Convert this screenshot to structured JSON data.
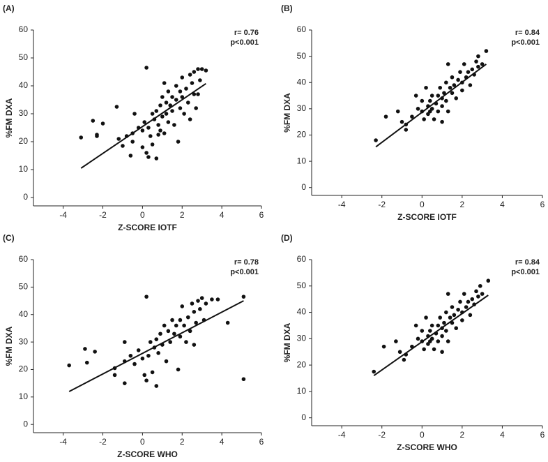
{
  "chart_data": [
    {
      "type": "scatter",
      "panel": "(A)",
      "xlabel": "Z-SCORE IOTF",
      "ylabel": "%FM DXA",
      "annotation": [
        "r= 0.76",
        "p<0.001"
      ],
      "x": [
        -3.1,
        -2.5,
        -2.3,
        -2.3,
        -2.0,
        -1.3,
        -1.2,
        -1.0,
        -0.8,
        -0.6,
        -0.5,
        -0.5,
        -0.4,
        -0.2,
        0,
        0,
        0.1,
        0.2,
        0.2,
        0.3,
        0.3,
        0.4,
        0.5,
        0.5,
        0.6,
        0.7,
        0.7,
        0.8,
        0.9,
        0.9,
        1.0,
        1.0,
        1.1,
        1.2,
        1.2,
        1.3,
        1.3,
        1.4,
        1.5,
        1.5,
        1.6,
        1.7,
        1.7,
        1.8,
        1.9,
        1.9,
        2.0,
        2.0,
        2.1,
        2.2,
        2.3,
        2.4,
        2.4,
        2.5,
        2.6,
        2.6,
        2.7,
        2.8,
        2.9,
        3.0,
        3.2,
        2.8,
        1.1,
        0.8
      ],
      "values": [
        21.5,
        27.5,
        22,
        22.5,
        26.5,
        32.5,
        21,
        18.5,
        22,
        15,
        23,
        20,
        30,
        25,
        24,
        18,
        27,
        16,
        46.5,
        14.5,
        25,
        22,
        30,
        19,
        28,
        14,
        31,
        26,
        24,
        33,
        29,
        36,
        23,
        34,
        30,
        38,
        27,
        33,
        36,
        31,
        26,
        35,
        40,
        20,
        32,
        38,
        43,
        36,
        30,
        39,
        34,
        44,
        28,
        41,
        37,
        45,
        32,
        46,
        42,
        46,
        45.5,
        37,
        41,
        22.5
      ],
      "trend": {
        "x": [
          -3.1,
          3.2
        ],
        "values": [
          10.5,
          40.8
        ]
      },
      "color": "#111111",
      "xlim": [
        -5.5,
        6
      ],
      "ylim": [
        -3,
        60
      ],
      "xticks": [
        -4,
        -2,
        0,
        2,
        4,
        6
      ],
      "yticks": [
        0,
        10,
        20,
        30,
        40,
        50,
        60
      ]
    },
    {
      "type": "scatter",
      "panel": "(B)",
      "xlabel": "Z-SCORE IOTF",
      "ylabel": "%FM DXA",
      "annotation": [
        "r= 0.84",
        "p<0.001"
      ],
      "x": [
        -2.3,
        -1.8,
        -1.2,
        -1.0,
        -0.8,
        -0.8,
        -0.5,
        -0.3,
        -0.2,
        0,
        0,
        0.1,
        0.2,
        0.3,
        0.3,
        0.4,
        0.5,
        0.5,
        0.6,
        0.7,
        0.8,
        0.8,
        0.9,
        1.0,
        1.0,
        1.1,
        1.2,
        1.2,
        1.3,
        1.4,
        1.5,
        1.5,
        1.6,
        1.7,
        1.8,
        1.9,
        2.0,
        2.0,
        2.1,
        2.2,
        2.3,
        2.4,
        2.5,
        2.6,
        2.7,
        2.8,
        2.8,
        3.0,
        3.2,
        1.3,
        0.4,
        1.0
      ],
      "values": [
        18,
        27,
        29,
        25,
        22,
        24,
        27,
        35,
        30,
        29,
        33,
        26,
        38,
        31,
        28,
        33,
        30,
        35,
        26,
        32,
        35,
        29,
        38,
        34,
        31,
        36,
        40,
        33,
        29,
        38,
        36,
        42,
        39,
        34,
        41,
        44,
        40,
        37,
        47,
        42,
        44,
        39,
        45,
        43,
        48,
        46,
        50,
        47,
        52,
        47,
        29,
        25
      ],
      "trend": {
        "x": [
          -2.3,
          3.2
        ],
        "values": [
          15.5,
          47
        ]
      },
      "color": "#111111",
      "xlim": [
        -5.5,
        6
      ],
      "ylim": [
        -3,
        60
      ],
      "xticks": [
        -4,
        -2,
        0,
        2,
        4,
        6
      ],
      "yticks": [
        0,
        10,
        20,
        30,
        40,
        50,
        60
      ]
    },
    {
      "type": "scatter",
      "panel": "(C)",
      "xlabel": "Z-SCORE WHO",
      "ylabel": "%FM DXA",
      "annotation": [
        "r= 0.78",
        "p<0.001"
      ],
      "x": [
        -3.7,
        -2.9,
        -2.8,
        -2.4,
        -1.4,
        -1.4,
        -0.9,
        -0.9,
        -0.9,
        -0.6,
        -0.4,
        -0.2,
        0,
        0.1,
        0.2,
        0.2,
        0.3,
        0.4,
        0.5,
        0.6,
        0.7,
        0.7,
        0.8,
        0.9,
        1.0,
        1.1,
        1.2,
        1.3,
        1.4,
        1.5,
        1.6,
        1.7,
        1.8,
        1.9,
        2.0,
        2.1,
        2.2,
        2.3,
        2.4,
        2.5,
        2.6,
        2.7,
        2.8,
        2.9,
        3.0,
        3.1,
        3.2,
        3.5,
        3.8,
        4.3,
        5.1,
        5.1,
        1.9,
        2.6
      ],
      "values": [
        21.5,
        27.5,
        22.5,
        26.5,
        20.5,
        18,
        23,
        30,
        15,
        25,
        22,
        27,
        24,
        18,
        46.5,
        16,
        25,
        30,
        19,
        28,
        14,
        31,
        26,
        33,
        29,
        36,
        23,
        34,
        30,
        38,
        33,
        36,
        20,
        38,
        43,
        36,
        30,
        39,
        34,
        44,
        41,
        37,
        45,
        42,
        46,
        38,
        44,
        45.5,
        45.5,
        37,
        46.5,
        16.5,
        32,
        29
      ],
      "trend": {
        "x": [
          -3.7,
          5.1
        ],
        "values": [
          12,
          45
        ]
      },
      "color": "#111111",
      "xlim": [
        -5.5,
        6
      ],
      "ylim": [
        -3,
        60
      ],
      "xticks": [
        -4,
        -2,
        0,
        2,
        4,
        6
      ],
      "yticks": [
        0,
        10,
        20,
        30,
        40,
        50,
        60
      ]
    },
    {
      "type": "scatter",
      "panel": "(D)",
      "xlabel": "Z-SCORE WHO",
      "ylabel": "%FM DXA",
      "annotation": [
        "r= 0.84",
        "p<0.001"
      ],
      "x": [
        -2.4,
        -1.9,
        -1.3,
        -1.1,
        -0.9,
        -0.8,
        -0.5,
        -0.3,
        -0.2,
        0,
        0,
        0.1,
        0.2,
        0.3,
        0.3,
        0.4,
        0.5,
        0.5,
        0.6,
        0.7,
        0.8,
        0.8,
        0.9,
        1.0,
        1.0,
        1.1,
        1.2,
        1.2,
        1.3,
        1.4,
        1.5,
        1.5,
        1.6,
        1.7,
        1.8,
        1.9,
        2.0,
        2.0,
        2.1,
        2.2,
        2.3,
        2.4,
        2.5,
        2.6,
        2.7,
        2.8,
        2.9,
        3.0,
        3.3,
        1.3,
        0.4,
        1.0
      ],
      "values": [
        17.5,
        27,
        29,
        25,
        22,
        24,
        27,
        35,
        30,
        29,
        33,
        26,
        38,
        31,
        28,
        33,
        30,
        35,
        26,
        32,
        35,
        29,
        38,
        34,
        31,
        36,
        40,
        33,
        29,
        38,
        36,
        42,
        39,
        34,
        41,
        44,
        40,
        37,
        47,
        42,
        44,
        39,
        45,
        43,
        48,
        46,
        50,
        47,
        52,
        47,
        29,
        25
      ],
      "trend": {
        "x": [
          -2.4,
          3.3
        ],
        "values": [
          16,
          46.5
        ]
      },
      "color": "#111111",
      "xlim": [
        -5.5,
        6
      ],
      "ylim": [
        -3,
        60
      ],
      "xticks": [
        -4,
        -2,
        0,
        2,
        4,
        6
      ],
      "yticks": [
        0,
        10,
        20,
        30,
        40,
        50,
        60
      ]
    }
  ]
}
